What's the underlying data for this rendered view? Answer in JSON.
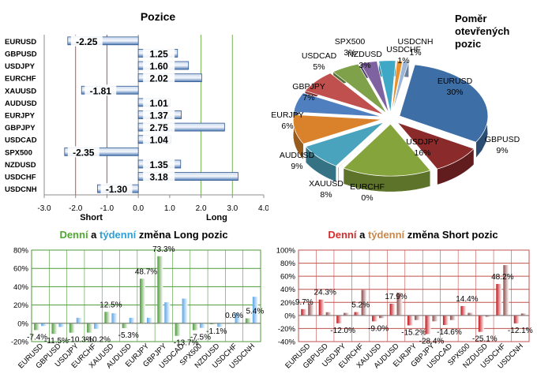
{
  "chart_data": [
    {
      "type": "bar",
      "orientation": "horizontal",
      "title": "Pozice",
      "categories": [
        "EURUSD",
        "GBPUSD",
        "USDJPY",
        "EURCHF",
        "XAUUSD",
        "AUDUSD",
        "EURJPY",
        "GBPJPY",
        "USDCAD",
        "SPX500",
        "NZDUSD",
        "USDCHF",
        "USDCNH"
      ],
      "values": [
        -2.25,
        1.25,
        1.6,
        2.02,
        -1.81,
        1.01,
        1.37,
        2.75,
        1.04,
        -2.35,
        1.35,
        3.18,
        -1.3
      ],
      "value_labels": [
        "-2.25",
        "1.25",
        "1.60",
        "2.02",
        "-1.81",
        "1.01",
        "1.37",
        "2.75",
        "1.04",
        "-2.35",
        "1.35",
        "3.18",
        "-1.30"
      ],
      "xlim": [
        -3.0,
        4.0
      ],
      "xticks": [
        "-3.0",
        "-2.0",
        "-1.0",
        "0.0",
        "1.0",
        "2.0",
        "3.0",
        "4.0"
      ],
      "reference_lines": {
        "short": [
          -2.0,
          -1.0
        ],
        "long": [
          2.0,
          3.0
        ]
      },
      "axis_annotations": {
        "short": "Short",
        "long": "Long"
      },
      "colors": {
        "bar": "#4a77b4",
        "bar_light": "#c9d8ee",
        "short_line": "#c0504d",
        "long_line": "#77b255"
      }
    },
    {
      "type": "pie",
      "title": "Poměr otevřených pozic",
      "labels": [
        "EURUSD",
        "GBPUSD",
        "USDJPY",
        "EURCHF",
        "XAUUSD",
        "AUDUSD",
        "EURJPY",
        "GBPJPY",
        "USDCAD",
        "SPX500",
        "NZDUSD",
        "USDCHF",
        "USDCNH"
      ],
      "values": [
        30,
        9,
        16,
        0,
        8,
        9,
        6,
        7,
        5,
        3,
        3,
        1,
        1
      ],
      "value_labels": [
        "30%",
        "9%",
        "16%",
        "0%",
        "8%",
        "9%",
        "6%",
        "7%",
        "5%",
        "3%",
        "3%",
        "1%",
        "1%"
      ],
      "colors": [
        "#3e6ea6",
        "#8b2a2a",
        "#86a43c",
        "#c6c6c6",
        "#4aa3bc",
        "#d9822b",
        "#4f7fbf",
        "#c0504d",
        "#7ea14a",
        "#7f63a1",
        "#3fa8c6",
        "#e8912f",
        "#9cb6d8"
      ],
      "exploded": true
    },
    {
      "type": "bar",
      "title": "Denní a týdenní změna Long pozic",
      "title_parts": [
        "Denní",
        " a ",
        "týdenní",
        " změna Long pozic"
      ],
      "title_colors": [
        "#4ea72e",
        "#000000",
        "#2e9fd8",
        "#000000"
      ],
      "categories": [
        "EURUSD",
        "GBPUSD",
        "USDJPY",
        "EURCHF",
        "XAUUSD",
        "AUDUSD",
        "EURJPY",
        "GBPJPY",
        "USDCAD",
        "SPX500",
        "NZDUSD",
        "USDCHF",
        "USDCNH"
      ],
      "series": [
        {
          "name": "Denní",
          "values": [
            -7.4,
            -11.5,
            -10.3,
            -10.2,
            12.5,
            -5.3,
            48.7,
            73.3,
            -13.7,
            -7.5,
            -1.1,
            0.6,
            5.4
          ],
          "color": "#4e9a3a"
        },
        {
          "name": "Týdenní",
          "values": [
            -3.0,
            -4.0,
            6.0,
            -6.0,
            11.0,
            6.0,
            6.0,
            23.0,
            27.0,
            -5.0,
            -4.0,
            11.0,
            29.0
          ],
          "color": "#5aa6e6"
        }
      ],
      "data_labels": [
        "-7.4%",
        "-11.5%",
        "-10.3%",
        "-10.2%",
        "12.5%",
        "-5.3%",
        "48.7%",
        "73.3%",
        "-13.7%",
        "-7.5%",
        "-1.1%",
        "0.6%",
        "5.4%"
      ],
      "ylim": [
        -20,
        80
      ],
      "yticks": [
        "-20%",
        "0%",
        "20%",
        "40%",
        "60%",
        "80%"
      ]
    },
    {
      "type": "bar",
      "title": "Denní a týdenní změna Short pozic",
      "title_parts": [
        "Denní",
        " a ",
        "týdenní",
        " změna Short pozic"
      ],
      "title_colors": [
        "#d62b2b",
        "#000000",
        "#c8874b",
        "#000000"
      ],
      "categories": [
        "EURUSD",
        "GBPUSD",
        "USDJPY",
        "EURCHF",
        "XAUUSD",
        "AUDUSD",
        "EURJPY",
        "GBPJPY",
        "USDCAD",
        "SPX500",
        "NZDUSD",
        "USDCHF",
        "USDCNH"
      ],
      "series": [
        {
          "name": "Denní",
          "values": [
            9.7,
            24.3,
            -12.0,
            5.2,
            -9.0,
            17.9,
            -15.2,
            -28.4,
            -14.6,
            14.4,
            -25.1,
            48.2,
            -12.1
          ],
          "color": "#c0141b"
        },
        {
          "name": "Týdenní",
          "values": [
            18.0,
            5.0,
            4.0,
            39.0,
            -4.0,
            35.0,
            -7.0,
            -9.0,
            -7.0,
            4.0,
            -2.0,
            77.0,
            3.0
          ],
          "color": "#8b4a4a"
        }
      ],
      "data_labels": [
        "9.7%",
        "24.3%",
        "-12.0%",
        "5.2%",
        "-9.0%",
        "17.9%",
        "-15.2%",
        "-28.4%",
        "-14.6%",
        "14.4%",
        "-25.1%",
        "48.2%",
        "-12.1%"
      ],
      "ylim": [
        -40,
        100
      ],
      "yticks": [
        "-40%",
        "-20%",
        "0%",
        "20%",
        "40%",
        "60%",
        "80%",
        "100%"
      ]
    }
  ]
}
